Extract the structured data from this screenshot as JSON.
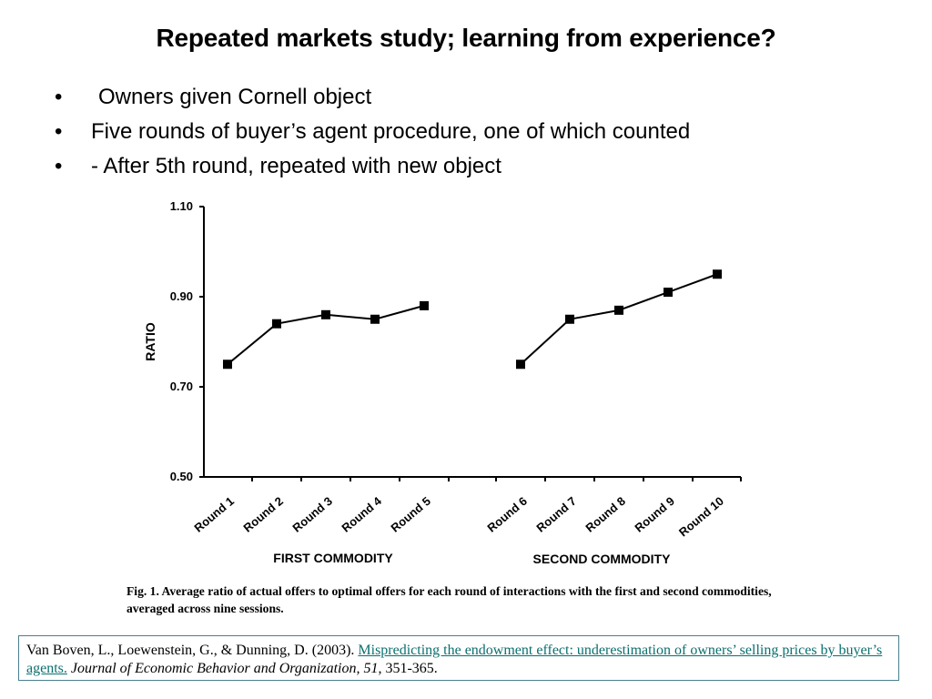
{
  "slide": {
    "title": "Repeated markets study; learning from experience?",
    "bullets": [
      {
        "marker": "•",
        "text": "Owners given Cornell object"
      },
      {
        "marker": "•",
        "text": "Five rounds of buyer’s agent procedure, one of which counted"
      },
      {
        "marker": "•",
        "text": "- After 5th round, repeated with new object"
      }
    ]
  },
  "chart_data": {
    "type": "line",
    "title": "",
    "ylabel": "RATIO",
    "ylim": [
      0.5,
      1.1
    ],
    "yticks": [
      0.5,
      0.7,
      0.9,
      1.1
    ],
    "ytick_labels": [
      "0.50",
      "0.70",
      "0.90",
      "1.10"
    ],
    "categories": [
      "Round 1",
      "Round 2",
      "Round 3",
      "Round 4",
      "Round 5",
      "Round 6",
      "Round 7",
      "Round 8",
      "Round 9",
      "Round 10"
    ],
    "group_labels": [
      "FIRST COMMODITY",
      "SECOND COMMODITY"
    ],
    "series": [
      {
        "name": "First commodity",
        "x": [
          "Round 1",
          "Round 2",
          "Round 3",
          "Round 4",
          "Round 5"
        ],
        "values": [
          0.75,
          0.84,
          0.86,
          0.85,
          0.88
        ]
      },
      {
        "name": "Second commodity",
        "x": [
          "Round 6",
          "Round 7",
          "Round 8",
          "Round 9",
          "Round 10"
        ],
        "values": [
          0.75,
          0.85,
          0.87,
          0.91,
          0.95
        ]
      }
    ],
    "caption_label": "Fig. 1.",
    "caption": "Average ratio of actual offers to optimal offers for each round of interactions with the first and second commodities, averaged across nine sessions."
  },
  "reference": {
    "authors_year": "Van Boven, L., Loewenstein, G., & Dunning, D. (2003). ",
    "link_text": "Mispredicting the endowment effect: underestimation of owners’ selling prices by buyer’s agents.",
    "journal": " Journal of Economic Behavior and Organization, 51",
    "pages": ", 351-365."
  }
}
